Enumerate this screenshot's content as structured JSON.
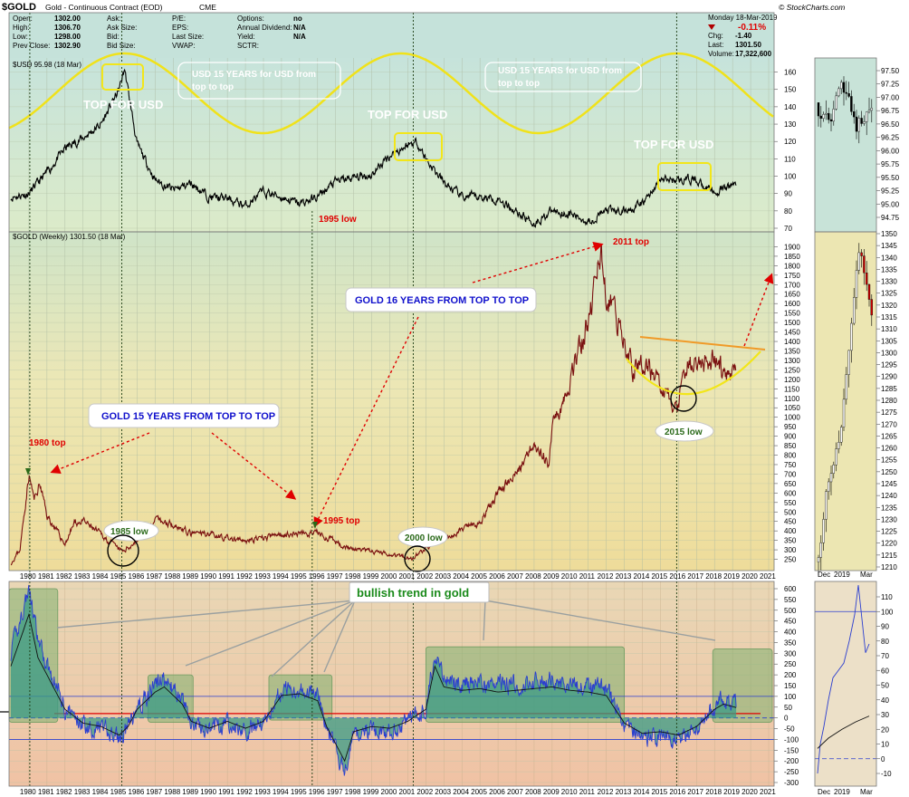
{
  "header": {
    "symbol": "$GOLD",
    "name": "Gold - Continuous Contract (EOD)",
    "exchange": "CME",
    "brand": "© StockCharts.com",
    "date": "Monday  18-Mar-2019",
    "fields": [
      {
        "k": "Open:",
        "v": "1302.00"
      },
      {
        "k": "High:",
        "v": "1306.70"
      },
      {
        "k": "Low:",
        "v": "1298.00"
      },
      {
        "k": "Prev Close:",
        "v": "1302.90"
      },
      {
        "k": "Ask:",
        "v": ""
      },
      {
        "k": "Ask Size:",
        "v": ""
      },
      {
        "k": "Bid:",
        "v": ""
      },
      {
        "k": "Bid Size:",
        "v": ""
      },
      {
        "k": "P/E:",
        "v": ""
      },
      {
        "k": "EPS:",
        "v": ""
      },
      {
        "k": "Last Size:",
        "v": ""
      },
      {
        "k": "VWAP:",
        "v": ""
      },
      {
        "k": "Options:",
        "v": "no"
      },
      {
        "k": "Annual Dividend:",
        "v": "N/A"
      },
      {
        "k": "Yield:",
        "v": "N/A"
      },
      {
        "k": "SCTR:",
        "v": ""
      }
    ],
    "pct": "-0.11%",
    "quote": [
      {
        "k": "Chg:",
        "v": "-1.40"
      },
      {
        "k": "Last:",
        "v": "1301.50"
      },
      {
        "k": "Volume:",
        "v": "17,322,600"
      }
    ]
  },
  "chart_data": [
    {
      "type": "line",
      "title": "$USD 95.98 (18 Mar)",
      "x": [
        1979,
        1980,
        1981,
        1982,
        1983,
        1984,
        1985,
        1985.3,
        1986,
        1987,
        1988,
        1989,
        1990,
        1991,
        1992,
        1993,
        1994,
        1995,
        1996,
        1997,
        1998,
        1999,
        2000,
        2001,
        2001.5,
        2002,
        2003,
        2004,
        2005,
        2006,
        2007,
        2008,
        2009,
        2010,
        2011,
        2012,
        2013,
        2014,
        2015,
        2016,
        2017,
        2018,
        2019.2
      ],
      "y": [
        88,
        90,
        102,
        116,
        122,
        130,
        150,
        162,
        118,
        98,
        92,
        96,
        88,
        87,
        83,
        91,
        88,
        84,
        88,
        97,
        99,
        101,
        112,
        118,
        120,
        110,
        96,
        88,
        88,
        87,
        80,
        73,
        80,
        78,
        74,
        80,
        80,
        84,
        98,
        98,
        98,
        90,
        96
      ],
      "ylim": [
        70,
        165
      ],
      "yticks": [
        70,
        80,
        90,
        100,
        110,
        120,
        130,
        140,
        150,
        160
      ],
      "annotations": [
        "TOP FOR USD",
        "TOP FOR USD",
        "TOP FOR USD",
        "USD 15 YEARS for USD from top to top",
        "USD 15 YEARS for USD from top to top"
      ]
    },
    {
      "type": "line",
      "title": "$GOLD (Weekly) 1301.50 (18 Mar)",
      "x": [
        1979,
        1979.5,
        1980,
        1980.3,
        1980.6,
        1981,
        1982,
        1982.5,
        1983,
        1984,
        1985,
        1985.2,
        1986,
        1987,
        1988,
        1989,
        1990,
        1991,
        1992,
        1993,
        1994,
        1995,
        1996,
        1997,
        1998,
        1999,
        2000,
        2001,
        2001.3,
        2002,
        2003,
        2004,
        2005,
        2006,
        2007,
        2008,
        2008.8,
        2009,
        2010,
        2011,
        2011.7,
        2012,
        2013,
        2013.5,
        2014,
        2015,
        2015.9,
        2016.5,
        2017,
        2018,
        2018.7,
        2019.2
      ],
      "y": [
        230,
        300,
        700,
        560,
        650,
        480,
        330,
        440,
        450,
        380,
        300,
        290,
        350,
        450,
        440,
        380,
        390,
        360,
        345,
        360,
        385,
        385,
        390,
        340,
        300,
        290,
        280,
        260,
        255,
        310,
        350,
        410,
        440,
        600,
        700,
        880,
        750,
        950,
        1200,
        1500,
        1880,
        1650,
        1400,
        1250,
        1300,
        1180,
        1050,
        1280,
        1260,
        1320,
        1200,
        1301.5
      ],
      "ylim": [
        200,
        1950
      ],
      "yticks": [
        250,
        300,
        350,
        400,
        450,
        500,
        550,
        600,
        650,
        700,
        750,
        800,
        850,
        900,
        950,
        1000,
        1050,
        1100,
        1150,
        1200,
        1250,
        1300,
        1350,
        1400,
        1450,
        1500,
        1550,
        1600,
        1650,
        1700,
        1750,
        1800,
        1850,
        1900
      ],
      "annotations": [
        "1980 top",
        "1995 low",
        "1995 top",
        "2011 top",
        "1985 low",
        "2000 low",
        "2015 low",
        "GOLD 15 YEARS FROM TOP TO TOP",
        "GOLD 16 YEARS FROM TOP TO TOP"
      ]
    },
    {
      "type": "area",
      "x": [
        1979,
        1979.5,
        1980,
        1980.5,
        1981,
        1982,
        1983,
        1984,
        1985,
        1985.5,
        1986,
        1987,
        1987.5,
        1988,
        1988.5,
        1989,
        1990,
        1991,
        1992,
        1993,
        1994,
        1995,
        1996,
        1996.5,
        1997,
        1997.5,
        1998,
        1999,
        2000,
        2001,
        2002,
        2002.5,
        2003,
        2004,
        2005,
        2006,
        2007,
        2008,
        2009,
        2010,
        2011,
        2012,
        2013,
        2014,
        2015,
        2016,
        2017,
        2018,
        2018.5,
        2019.2
      ],
      "y": [
        300,
        450,
        600,
        350,
        250,
        50,
        -30,
        -50,
        -100,
        -50,
        50,
        150,
        180,
        130,
        80,
        -20,
        -60,
        -20,
        -60,
        -20,
        130,
        140,
        100,
        -50,
        -150,
        -250,
        -80,
        -50,
        -60,
        -20,
        50,
        300,
        180,
        160,
        170,
        150,
        160,
        170,
        180,
        160,
        150,
        130,
        -30,
        -90,
        -80,
        -100,
        -50,
        50,
        80,
        60
      ],
      "ylim": [
        -300,
        600
      ],
      "yticks": [
        -300,
        -250,
        -200,
        -150,
        -100,
        -50,
        0,
        50,
        100,
        150,
        200,
        250,
        300,
        350,
        400,
        450,
        500,
        550,
        600
      ],
      "annotations": [
        "bullish trend in gold"
      ]
    }
  ],
  "x_labels": [
    "1980",
    "1981",
    "1982",
    "1983",
    "1984",
    "1985",
    "1986",
    "1987",
    "1988",
    "1989",
    "1990",
    "1991",
    "1992",
    "1993",
    "1994",
    "1995",
    "1996",
    "1997",
    "1998",
    "1999",
    "2000",
    "2001",
    "2002",
    "2003",
    "2004",
    "2005",
    "2006",
    "2007",
    "2008",
    "2009",
    "2010",
    "2011",
    "2012",
    "2013",
    "2014",
    "2015",
    "2016",
    "2017",
    "2018",
    "2019",
    "2020",
    "2021"
  ],
  "side": {
    "usd_ticks": [
      "97.50",
      "97.25",
      "97.00",
      "96.75",
      "96.50",
      "96.25",
      "96.00",
      "95.75",
      "95.50",
      "95.25",
      "95.00",
      "94.75"
    ],
    "gold_ticks": [
      "1350",
      "1345",
      "1340",
      "1335",
      "1330",
      "1325",
      "1320",
      "1315",
      "1310",
      "1305",
      "1300",
      "1295",
      "1290",
      "1285",
      "1280",
      "1275",
      "1270",
      "1265",
      "1260",
      "1255",
      "1250",
      "1245",
      "1240",
      "1235",
      "1230",
      "1225",
      "1220",
      "1215",
      "1210"
    ],
    "osc_ticks": [
      "110",
      "100",
      "90",
      "80",
      "70",
      "60",
      "50",
      "40",
      "30",
      "20",
      "10",
      "0",
      "-10"
    ],
    "x_labels": [
      "Dec",
      "2019",
      "Mar"
    ]
  },
  "colors": {
    "usd_bg": "#cfe6dc",
    "gold_bg": "#eee3b0",
    "osc_bg": "#f0c9a8",
    "yellow": "#f0e21a",
    "red": "#e00000",
    "blue": "#1a2ccc",
    "green_box": "#7fb06f",
    "orange": "#f09a28"
  }
}
